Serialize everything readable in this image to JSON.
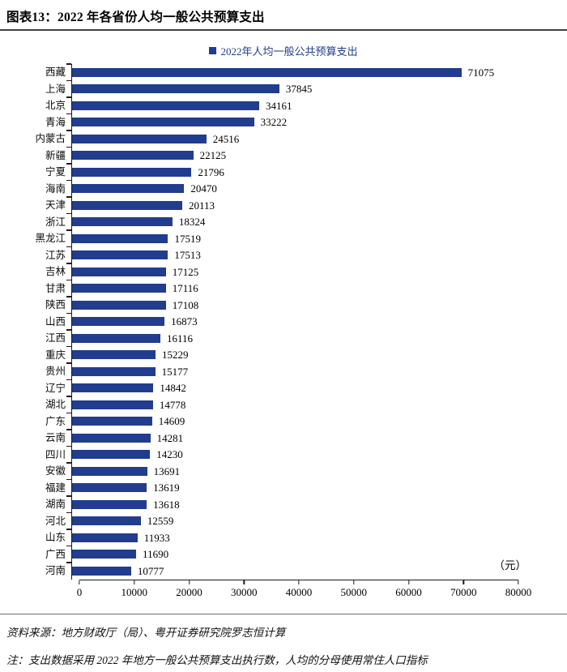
{
  "header": {
    "title": "图表13：2022 年各省份人均一般公共预算支出"
  },
  "chart_data": {
    "type": "bar",
    "orientation": "horizontal",
    "title": "图表13：2022 年各省份人均一般公共预算支出",
    "legend": "2022年人均一般公共预算支出",
    "legend_position": "top",
    "unit": "（元）",
    "bar_color": "#223C8E",
    "categories": [
      "西藏",
      "上海",
      "北京",
      "青海",
      "内蒙古",
      "新疆",
      "宁夏",
      "海南",
      "天津",
      "浙江",
      "黑龙江",
      "江苏",
      "吉林",
      "甘肃",
      "陕西",
      "山西",
      "江西",
      "重庆",
      "贵州",
      "辽宁",
      "湖北",
      "广东",
      "云南",
      "四川",
      "安徽",
      "福建",
      "湖南",
      "河北",
      "山东",
      "广西",
      "河南"
    ],
    "values": [
      71075,
      37845,
      34161,
      33222,
      24516,
      22125,
      21796,
      20470,
      20113,
      18324,
      17519,
      17513,
      17125,
      17116,
      17108,
      16873,
      16116,
      15229,
      15177,
      14842,
      14778,
      14609,
      14281,
      14230,
      13691,
      13619,
      13618,
      12559,
      11933,
      11690,
      10777
    ],
    "xlim": [
      0,
      80000
    ],
    "x_ticks": [
      0,
      10000,
      20000,
      30000,
      40000,
      50000,
      60000,
      70000,
      80000
    ],
    "grid": false
  },
  "footer": {
    "source": "资料来源：地方财政厅（局）、粤开证券研究院罗志恒计算",
    "note": "注：支出数据采用 2022 年地方一般公共预算支出执行数，人均的分母使用常住人口指标"
  }
}
